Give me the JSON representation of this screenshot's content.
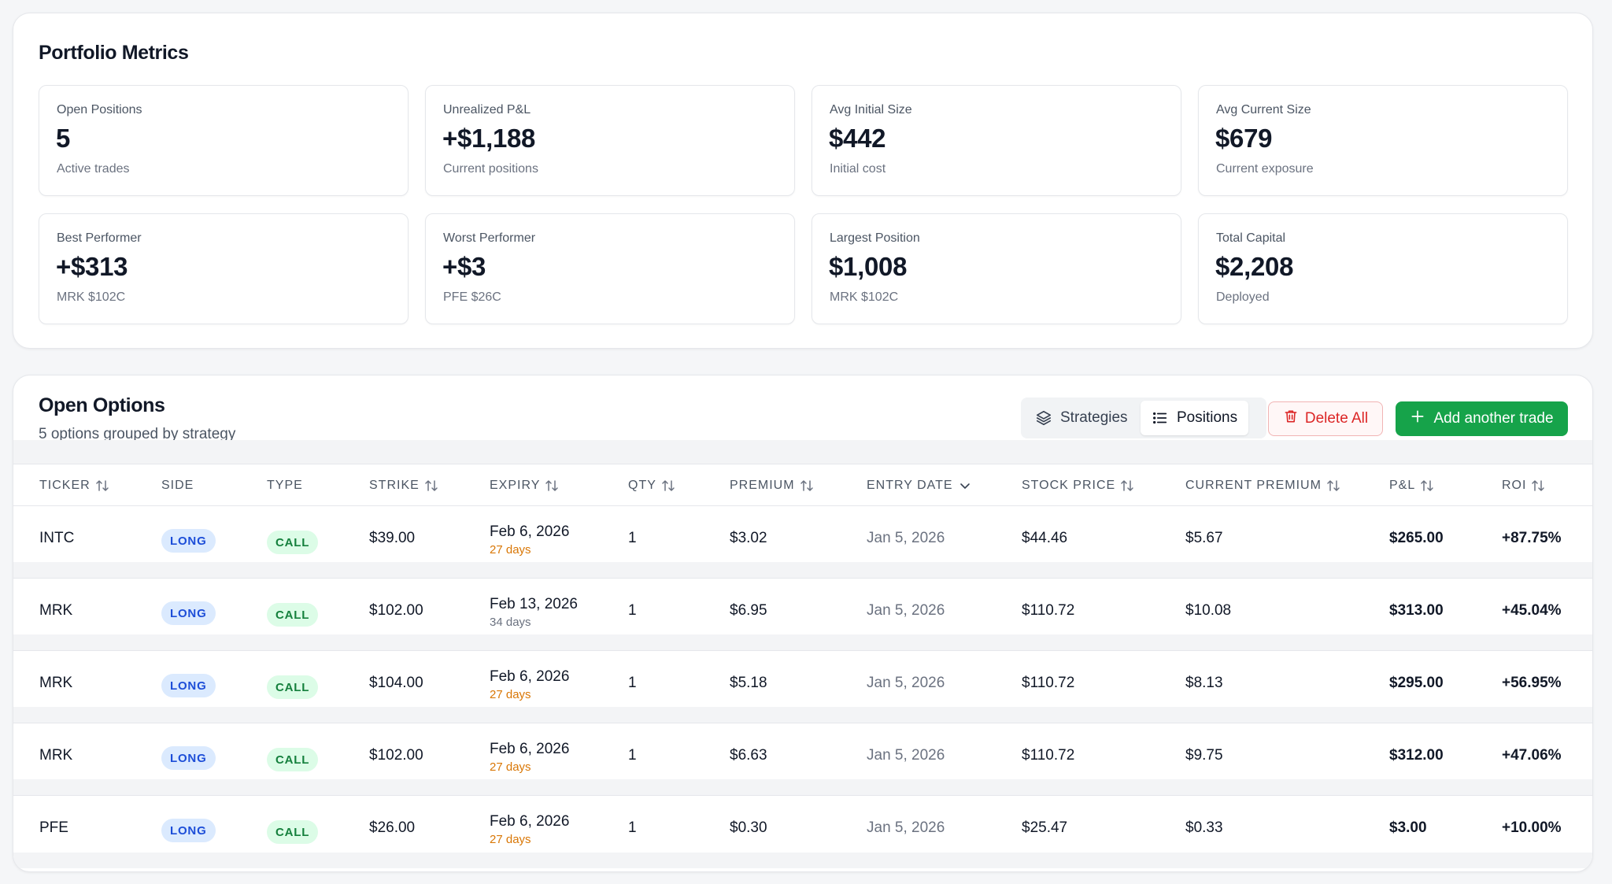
{
  "metrics": {
    "title": "Portfolio Metrics",
    "cards": [
      {
        "label": "Open Positions",
        "value": "5",
        "sub": "Active trades"
      },
      {
        "label": "Unrealized P&L",
        "value": "+$1,188",
        "sub": "Current positions"
      },
      {
        "label": "Avg Initial Size",
        "value": "$442",
        "sub": "Initial cost"
      },
      {
        "label": "Avg Current Size",
        "value": "$679",
        "sub": "Current exposure"
      },
      {
        "label": "Best Performer",
        "value": "+$313",
        "sub": "MRK $102C"
      },
      {
        "label": "Worst Performer",
        "value": "+$3",
        "sub": "PFE $26C"
      },
      {
        "label": "Largest Position",
        "value": "$1,008",
        "sub": "MRK $102C"
      },
      {
        "label": "Total Capital",
        "value": "$2,208",
        "sub": "Deployed"
      }
    ]
  },
  "options": {
    "title": "Open Options",
    "subtitle": "5 options grouped by strategy",
    "view_toggle": {
      "strategies": "Strategies",
      "positions": "Positions",
      "active": "positions"
    },
    "delete_all_label": "Delete All",
    "add_trade_label": "Add another trade",
    "columns": [
      {
        "key": "ticker",
        "label": "Ticker",
        "sort": "both"
      },
      {
        "key": "side",
        "label": "Side",
        "sort": "none"
      },
      {
        "key": "type",
        "label": "Type",
        "sort": "none"
      },
      {
        "key": "strike",
        "label": "Strike",
        "sort": "both"
      },
      {
        "key": "expiry",
        "label": "Expiry",
        "sort": "both"
      },
      {
        "key": "qty",
        "label": "Qty",
        "sort": "both"
      },
      {
        "key": "premium",
        "label": "Premium",
        "sort": "both"
      },
      {
        "key": "entry_date",
        "label": "Entry Date",
        "sort": "desc"
      },
      {
        "key": "stock_price",
        "label": "Stock Price",
        "sort": "both"
      },
      {
        "key": "current_premium",
        "label": "Current Premium",
        "sort": "both"
      },
      {
        "key": "pnl",
        "label": "P&L",
        "sort": "both"
      },
      {
        "key": "roi",
        "label": "ROI",
        "sort": "both"
      }
    ],
    "rows": [
      {
        "ticker": "INTC",
        "side": "LONG",
        "type": "CALL",
        "strike": "$39.00",
        "expiry": "Feb 6, 2026",
        "days": "27 days",
        "days_warn": true,
        "qty": "1",
        "premium": "$3.02",
        "entry_date": "Jan 5, 2026",
        "stock_price": "$44.46",
        "current_premium": "$5.67",
        "pnl": "$265.00",
        "roi": "+87.75%"
      },
      {
        "ticker": "MRK",
        "side": "LONG",
        "type": "CALL",
        "strike": "$102.00",
        "expiry": "Feb 13, 2026",
        "days": "34 days",
        "days_warn": false,
        "qty": "1",
        "premium": "$6.95",
        "entry_date": "Jan 5, 2026",
        "stock_price": "$110.72",
        "current_premium": "$10.08",
        "pnl": "$313.00",
        "roi": "+45.04%"
      },
      {
        "ticker": "MRK",
        "side": "LONG",
        "type": "CALL",
        "strike": "$104.00",
        "expiry": "Feb 6, 2026",
        "days": "27 days",
        "days_warn": true,
        "qty": "1",
        "premium": "$5.18",
        "entry_date": "Jan 5, 2026",
        "stock_price": "$110.72",
        "current_premium": "$8.13",
        "pnl": "$295.00",
        "roi": "+56.95%"
      },
      {
        "ticker": "MRK",
        "side": "LONG",
        "type": "CALL",
        "strike": "$102.00",
        "expiry": "Feb 6, 2026",
        "days": "27 days",
        "days_warn": true,
        "qty": "1",
        "premium": "$6.63",
        "entry_date": "Jan 5, 2026",
        "stock_price": "$110.72",
        "current_premium": "$9.75",
        "pnl": "$312.00",
        "roi": "+47.06%"
      },
      {
        "ticker": "PFE",
        "side": "LONG",
        "type": "CALL",
        "strike": "$26.00",
        "expiry": "Feb 6, 2026",
        "days": "27 days",
        "days_warn": true,
        "qty": "1",
        "premium": "$0.30",
        "entry_date": "Jan 5, 2026",
        "stock_price": "$25.47",
        "current_premium": "$0.33",
        "pnl": "$3.00",
        "roi": "+10.00%"
      }
    ]
  },
  "colors": {
    "accent_green": "#16a34a",
    "danger_red": "#dc2626",
    "long_badge": "#dbeafe",
    "call_badge": "#dcfce7",
    "days_warning": "#d97706"
  },
  "icons": {
    "strategies": "layers-icon",
    "positions": "list-icon",
    "delete": "trash-icon",
    "add": "plus-icon",
    "sort_both": "sort-arrows-icon",
    "sort_desc": "chevron-down-icon"
  }
}
